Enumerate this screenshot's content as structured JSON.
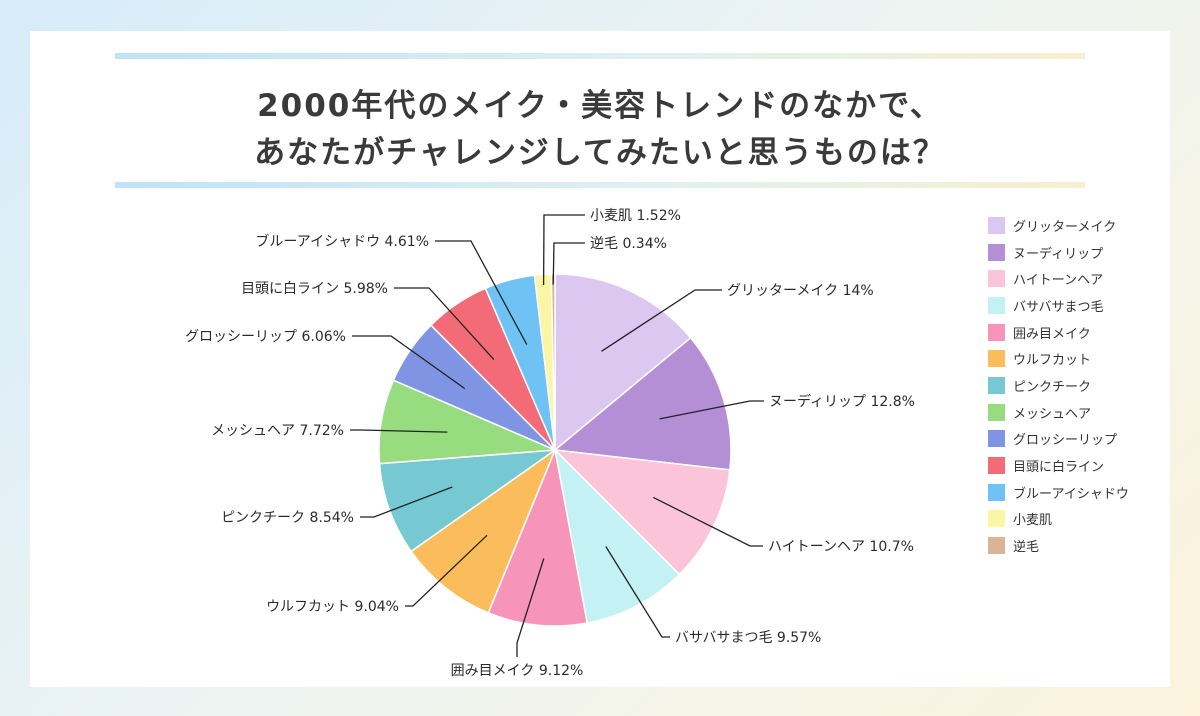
{
  "title_lines": [
    "2000年代のメイク・美容トレンドのなかで、",
    "あなたがチャレンジしてみたいと思うものは？"
  ],
  "chart_data": {
    "type": "pie",
    "title": "2000年代のメイク・美容トレンドのなかで、あなたがチャレンジしてみたいと思うものは？",
    "unit": "%",
    "legend_position": "right",
    "start_angle": "12 o'clock, clockwise",
    "slices": [
      {
        "label": "グリッターメイク",
        "value": 14,
        "display": "14%",
        "color": "#dcc7f0"
      },
      {
        "label": "ヌーディリップ",
        "value": 12.8,
        "display": "12.8%",
        "color": "#b48fd6"
      },
      {
        "label": "ハイトーンヘア",
        "value": 10.7,
        "display": "10.7%",
        "color": "#fbc4d8"
      },
      {
        "label": "バサバサまつ毛",
        "value": 9.57,
        "display": "9.57%",
        "color": "#c4f1f4"
      },
      {
        "label": "囲み目メイク",
        "value": 9.12,
        "display": "9.12%",
        "color": "#f794b9"
      },
      {
        "label": "ウルフカット",
        "value": 9.04,
        "display": "9.04%",
        "color": "#fbbd5b"
      },
      {
        "label": "ピンクチーク",
        "value": 8.54,
        "display": "8.54%",
        "color": "#76c9d3"
      },
      {
        "label": "メッシュヘア",
        "value": 7.72,
        "display": "7.72%",
        "color": "#97dc7e"
      },
      {
        "label": "グロッシーリップ",
        "value": 6.06,
        "display": "6.06%",
        "color": "#7f95e3"
      },
      {
        "label": "目頭に白ライン",
        "value": 5.98,
        "display": "5.98%",
        "color": "#f36b76"
      },
      {
        "label": "ブルーアイシャドウ",
        "value": 4.61,
        "display": "4.61%",
        "color": "#6ec3f4"
      },
      {
        "label": "小麦肌",
        "value": 1.52,
        "display": "1.52%",
        "color": "#fbf6a4"
      },
      {
        "label": "逆毛",
        "value": 0.34,
        "display": "0.34%",
        "color": "#d9b595"
      }
    ]
  }
}
